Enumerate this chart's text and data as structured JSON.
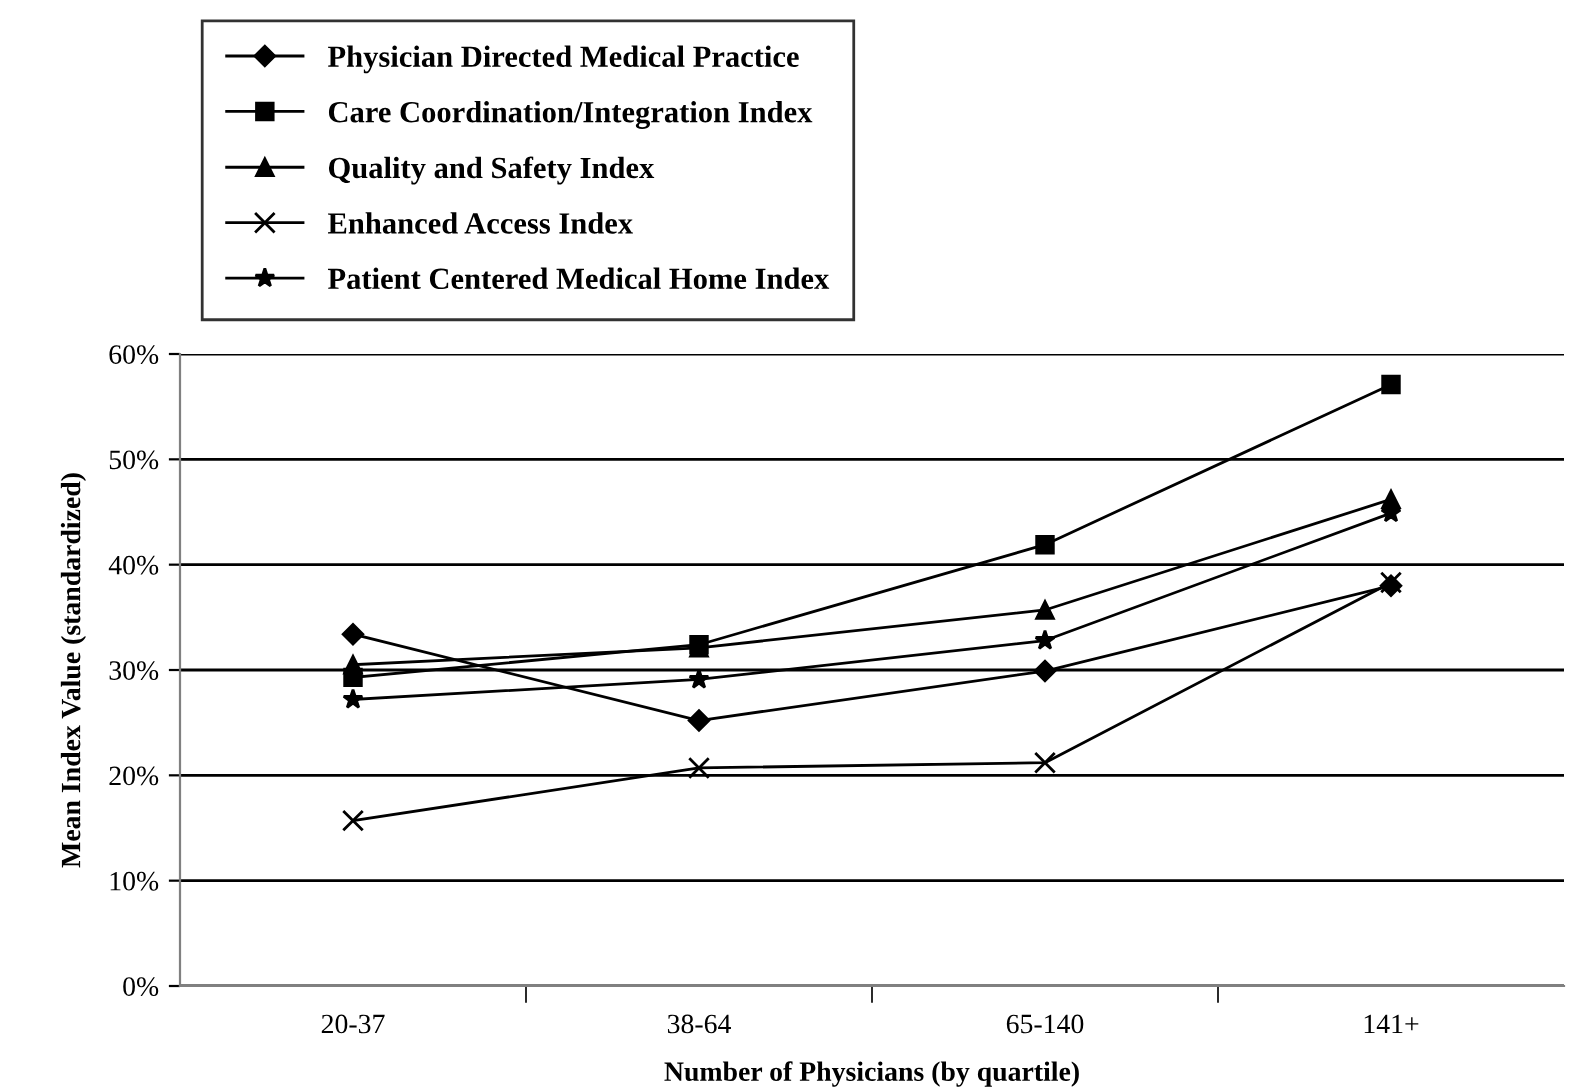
{
  "chart_data": {
    "type": "line",
    "xlabel": "Number of Physicians (by quartile)",
    "ylabel": "Mean Index Value (standardized)",
    "categories": [
      "20-37",
      "38-64",
      "65-140",
      "141+"
    ],
    "series": [
      {
        "name": "Physician Directed Medical Practice",
        "color": "#000000",
        "marker": "diamond",
        "values": [
          33.4,
          25.2,
          29.9,
          38.0
        ]
      },
      {
        "name": "Care Coordination/Integration Index",
        "color": "#000000",
        "marker": "square",
        "values": [
          29.3,
          32.4,
          41.9,
          57.1
        ]
      },
      {
        "name": "Quality and Safety Index",
        "color": "#000000",
        "marker": "triangle",
        "values": [
          30.5,
          32.1,
          35.7,
          46.2
        ]
      },
      {
        "name": "Enhanced Access Index",
        "color": "#000000",
        "marker": "cross",
        "values": [
          15.7,
          20.7,
          21.2,
          38.3
        ]
      },
      {
        "name": "Patient Centered Medical Home Index",
        "color": "#000000",
        "marker": "star",
        "values": [
          27.2,
          29.1,
          32.8,
          44.9
        ]
      }
    ],
    "ylim": [
      0,
      60
    ],
    "yticks": [
      {
        "value": 0,
        "label": "0%"
      },
      {
        "value": 10,
        "label": "10%"
      },
      {
        "value": 20,
        "label": "20%"
      },
      {
        "value": 30,
        "label": "30%"
      },
      {
        "value": 40,
        "label": "40%"
      },
      {
        "value": 50,
        "label": "50%"
      },
      {
        "value": 60,
        "label": "60%"
      }
    ],
    "grid": "y",
    "legend": "top left",
    "line_style": "solid"
  }
}
